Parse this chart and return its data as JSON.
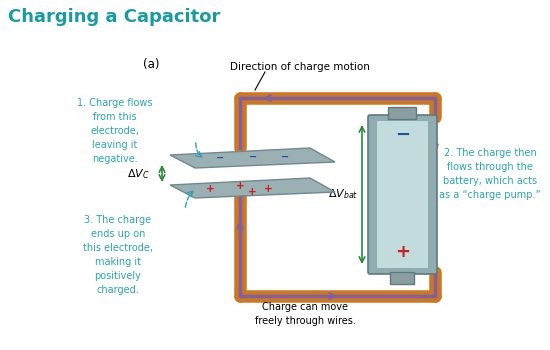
{
  "title": "Charging a Capacitor",
  "title_color": "#1a9ba0",
  "title_fontsize": 13,
  "background_color": "#ffffff",
  "label_a": "(a)",
  "direction_label": "Direction of charge motion",
  "label1": "1. Charge flows\nfrom this\nelectrode,\nleaving it\nnegative.",
  "label2": "2. The charge then\nflows through the\nbattery, which acts\nas a “charge pump.”",
  "label3": "3. The charge\nends up on\nthis electrode,\nmaking it\npositively\ncharged.",
  "label_bottom": "Charge can move\nfreely through wires.",
  "cyan_color": "#2aa5b0",
  "orange_color": "#cc7722",
  "purple_color": "#8060a0",
  "plate_color": "#9ab0b2",
  "plate_edge": "#708890",
  "battery_body_color": "#8fadb0",
  "battery_highlight_color": "#d0e8ea",
  "battery_edge_color": "#607880",
  "green_arrow_color": "#2a8a3a",
  "minus_color": "#2050a0",
  "plus_color": "#cc2020",
  "bat_label_color": "#2050a0",
  "dashed_arrow_color": "#2aa5b0",
  "black": "#000000"
}
